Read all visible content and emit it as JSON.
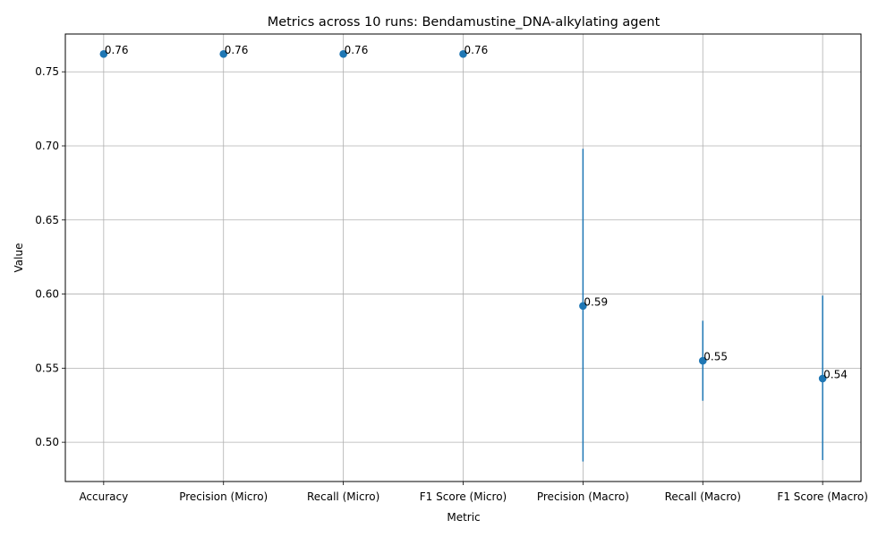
{
  "chart_data": {
    "type": "scatter",
    "title": "Metrics across 10 runs: Bendamustine_DNA-alkylating agent",
    "xlabel": "Metric",
    "ylabel": "Value",
    "categories": [
      "Accuracy",
      "Precision (Micro)",
      "Recall (Micro)",
      "F1 Score (Micro)",
      "Precision (Macro)",
      "Recall (Macro)",
      "F1 Score (Macro)"
    ],
    "values": [
      0.762,
      0.762,
      0.762,
      0.762,
      0.592,
      0.555,
      0.543
    ],
    "error_low": [
      0.762,
      0.762,
      0.762,
      0.762,
      0.487,
      0.528,
      0.488
    ],
    "error_high": [
      0.762,
      0.762,
      0.762,
      0.762,
      0.698,
      0.582,
      0.599
    ],
    "data_labels": [
      "0.76",
      "0.76",
      "0.76",
      "0.76",
      "0.59",
      "0.55",
      "0.54"
    ],
    "ylim": [
      0.4735,
      0.7755
    ],
    "yticks": [
      0.5,
      0.55,
      0.6,
      0.65,
      0.7,
      0.75
    ],
    "ytick_labels": [
      "0.50",
      "0.55",
      "0.60",
      "0.65",
      "0.70",
      "0.75"
    ],
    "grid": true,
    "legend": false,
    "colors": {
      "marker": "#1f77b4",
      "errorbar": "#1f77b4",
      "grid": "#b0b0b0"
    }
  }
}
